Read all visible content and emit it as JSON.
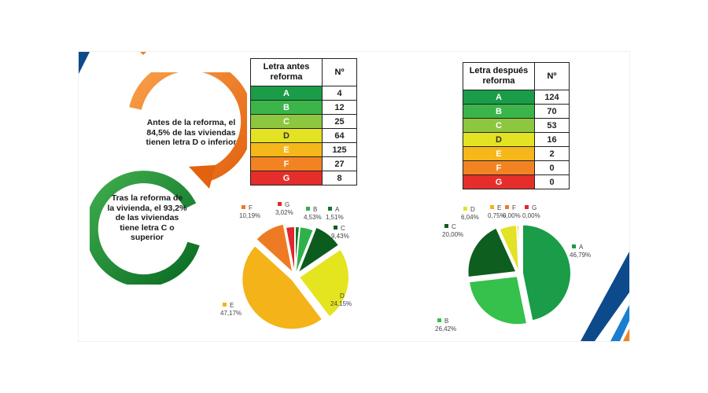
{
  "text_before": "Antes de la reforma, el 84,5% de las viviendas tienen letra D o inferior",
  "text_after": "Tras la reforma de la vivienda, el 93,2% de las viviendas tiene letra C o superior",
  "table_before": {
    "header_letter": "Letra antes reforma",
    "header_n": "Nº",
    "rows": [
      {
        "letter": "A",
        "n": "4",
        "color": "#1a9c48"
      },
      {
        "letter": "B",
        "n": "12",
        "color": "#3bb54a"
      },
      {
        "letter": "C",
        "n": "25",
        "color": "#8dc63f"
      },
      {
        "letter": "D",
        "n": "64",
        "color": "#e3e323"
      },
      {
        "letter": "E",
        "n": "125",
        "color": "#f5b719"
      },
      {
        "letter": "F",
        "n": "27",
        "color": "#f28322"
      },
      {
        "letter": "G",
        "n": "8",
        "color": "#e52e2b"
      }
    ]
  },
  "table_after": {
    "header_letter": "Letra después reforma",
    "header_n": "Nº",
    "rows": [
      {
        "letter": "A",
        "n": "124",
        "color": "#1a9c48"
      },
      {
        "letter": "B",
        "n": "70",
        "color": "#3bb54a"
      },
      {
        "letter": "C",
        "n": "53",
        "color": "#8dc63f"
      },
      {
        "letter": "D",
        "n": "16",
        "color": "#e3e323"
      },
      {
        "letter": "E",
        "n": "2",
        "color": "#f5b719"
      },
      {
        "letter": "F",
        "n": "0",
        "color": "#f28322"
      },
      {
        "letter": "G",
        "n": "0",
        "color": "#e52e2b"
      }
    ]
  },
  "chart_data": [
    {
      "type": "pie",
      "categories": [
        "A",
        "B",
        "C",
        "D",
        "E",
        "F",
        "G"
      ],
      "values": [
        1.51,
        4.53,
        9.43,
        24.15,
        47.17,
        10.19,
        3.02
      ],
      "labels": [
        "1,51%",
        "4,53%",
        "9,43%",
        "24,15%",
        "47,17%",
        "10,19%",
        "3,02%"
      ],
      "colors": [
        "#0e7a2c",
        "#2fb14a",
        "#0c5c1d",
        "#e4e41f",
        "#f4b319",
        "#ee7b23",
        "#e3262b"
      ],
      "exploded": [
        "C",
        "D",
        "E",
        "F"
      ]
    },
    {
      "type": "pie",
      "categories": [
        "A",
        "B",
        "C",
        "D",
        "E",
        "F",
        "G"
      ],
      "values": [
        46.79,
        26.42,
        20.0,
        6.04,
        0.75,
        0.0,
        0.0
      ],
      "labels": [
        "46,79%",
        "26,42%",
        "20,00%",
        "6,04%",
        "0,75%",
        "0,00%",
        "0,00%"
      ],
      "colors": [
        "#1a9c48",
        "#36c04c",
        "#0d5e1f",
        "#e2e227",
        "#f4b319",
        "#ee7b23",
        "#e3262b"
      ],
      "exploded": [
        "A",
        "B",
        "C"
      ]
    }
  ]
}
